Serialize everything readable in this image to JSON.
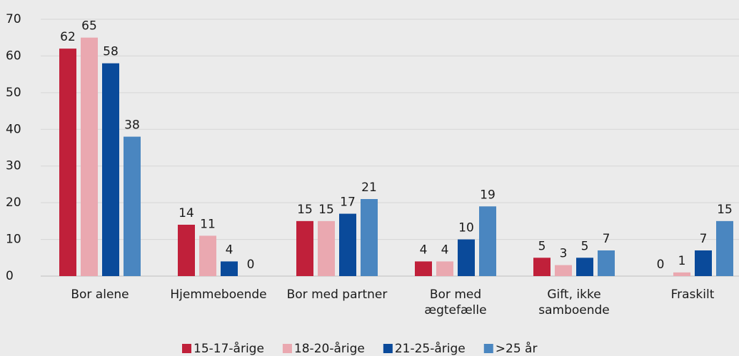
{
  "chart_data": {
    "type": "bar",
    "categories": [
      "Bor alene",
      "Hjemmeboende",
      "Bor med partner",
      "Bor med\nægtefælle",
      "Gift, ikke\nsamboende",
      "Fraskilt"
    ],
    "series": [
      {
        "name": "15-17-årige",
        "color": "#c0203a",
        "values": [
          62,
          14,
          15,
          4,
          5,
          0
        ]
      },
      {
        "name": "18-20-årige",
        "color": "#eaa8b0",
        "values": [
          65,
          11,
          15,
          4,
          3,
          1
        ]
      },
      {
        "name": "21-25-årige",
        "color": "#0a4a9a",
        "values": [
          58,
          4,
          17,
          10,
          5,
          7
        ]
      },
      {
        "name": ">25 år",
        "color": "#4a86c0",
        "values": [
          38,
          0,
          21,
          19,
          7,
          15
        ]
      }
    ],
    "ylim": [
      0,
      70
    ],
    "yticks": [
      0,
      10,
      20,
      30,
      40,
      50,
      60,
      70
    ],
    "grid": true,
    "legend": "bottom"
  }
}
